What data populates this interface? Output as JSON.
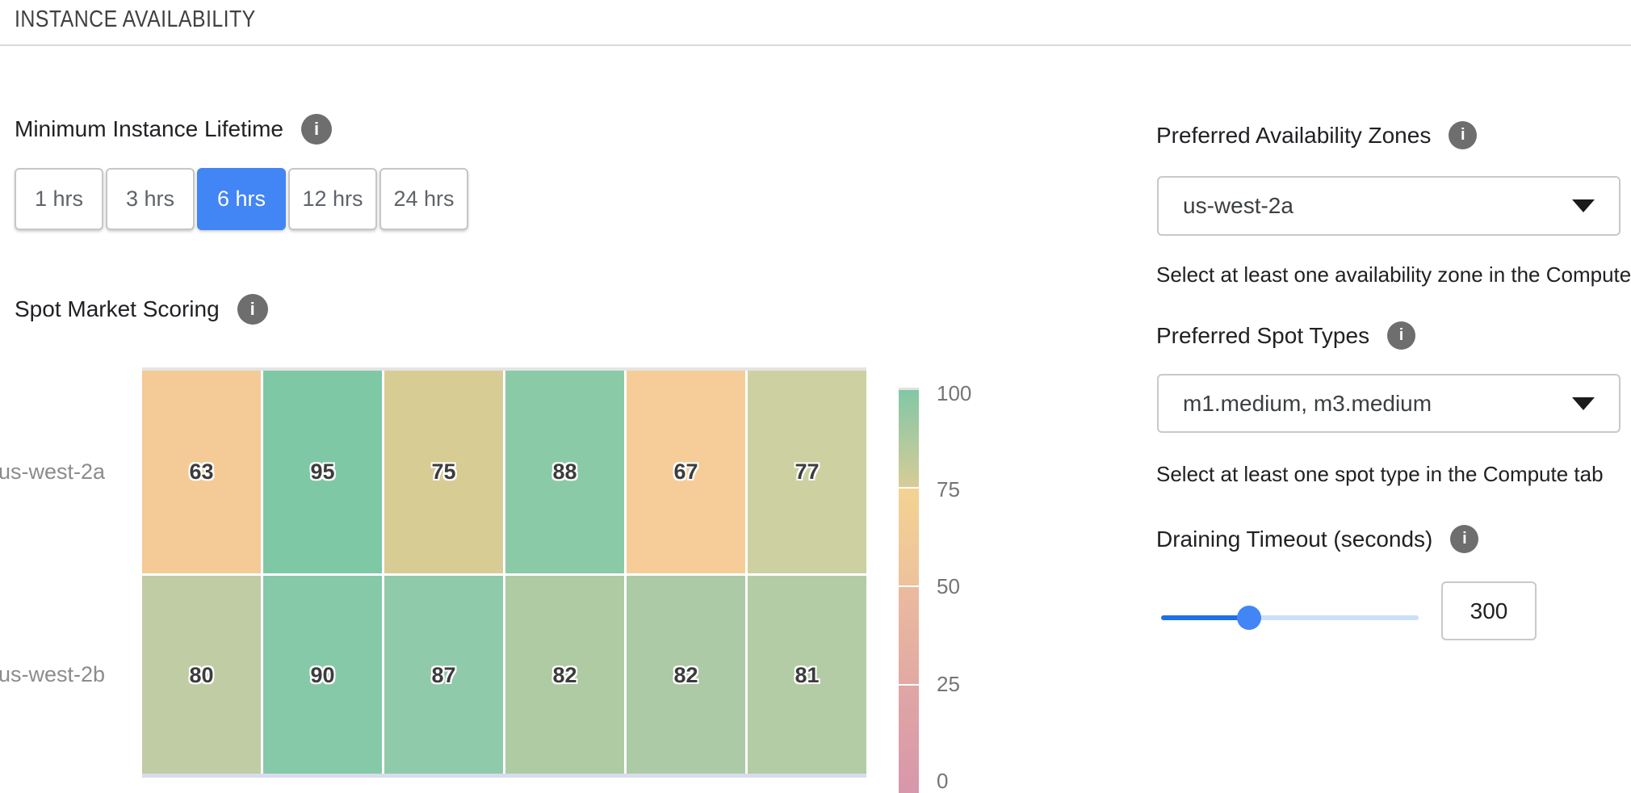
{
  "page": {
    "title": "INSTANCE AVAILABILITY"
  },
  "colors": {
    "accent_blue": "#4285F4",
    "slider_fill_blue": "#1E6FE8",
    "slider_rest_blue": "#CBDFF8",
    "info_icon_gray": "#6E6E6E",
    "border_gray": "#C9C9C9"
  },
  "lifetime": {
    "label": "Minimum Instance Lifetime",
    "options": [
      {
        "label": "1 hrs",
        "selected": false
      },
      {
        "label": "3 hrs",
        "selected": false
      },
      {
        "label": "6 hrs",
        "selected": true
      },
      {
        "label": "12 hrs",
        "selected": false
      },
      {
        "label": "24 hrs",
        "selected": false
      }
    ]
  },
  "scoring": {
    "label": "Spot Market Scoring"
  },
  "chart_data": {
    "type": "heatmap",
    "title": "Spot Market Scoring",
    "legend_position": "right",
    "value_range": [
      0,
      100
    ],
    "columns": 6,
    "rows": [
      {
        "label": "us-west-2a",
        "values": [
          63,
          95,
          75,
          88,
          67,
          77
        ],
        "colors": [
          "#F4CA96",
          "#7FC8A6",
          "#D8CC95",
          "#8BCAA7",
          "#F6CD99",
          "#CDD1A1"
        ]
      },
      {
        "label": "us-west-2b",
        "values": [
          80,
          90,
          87,
          82,
          82,
          81
        ],
        "colors": [
          "#C0CCA3",
          "#86C9A9",
          "#8FCAAA",
          "#AECBA4",
          "#ACCAA5",
          "#B3CCA5"
        ]
      }
    ],
    "colorbar": {
      "ticks": [
        "100",
        "75",
        "50",
        "25",
        "0"
      ],
      "segments": [
        {
          "from": "#82C7A6",
          "to": "#D7CC97"
        },
        {
          "from": "#F3D393",
          "to": "#EEC29B"
        },
        {
          "from": "#EBBB9E",
          "to": "#E2A9A3"
        },
        {
          "from": "#E0A6A4",
          "to": "#D897AB"
        }
      ]
    }
  },
  "zones": {
    "label": "Preferred Availability Zones",
    "value": "us-west-2a",
    "helper": "Select at least one availability zone in the Compute tab"
  },
  "spot_types": {
    "label": "Preferred Spot Types",
    "value": "m1.medium, m3.medium",
    "helper": "Select at least one spot type in the Compute tab"
  },
  "draining": {
    "label": "Draining Timeout (seconds)",
    "value": "300"
  }
}
